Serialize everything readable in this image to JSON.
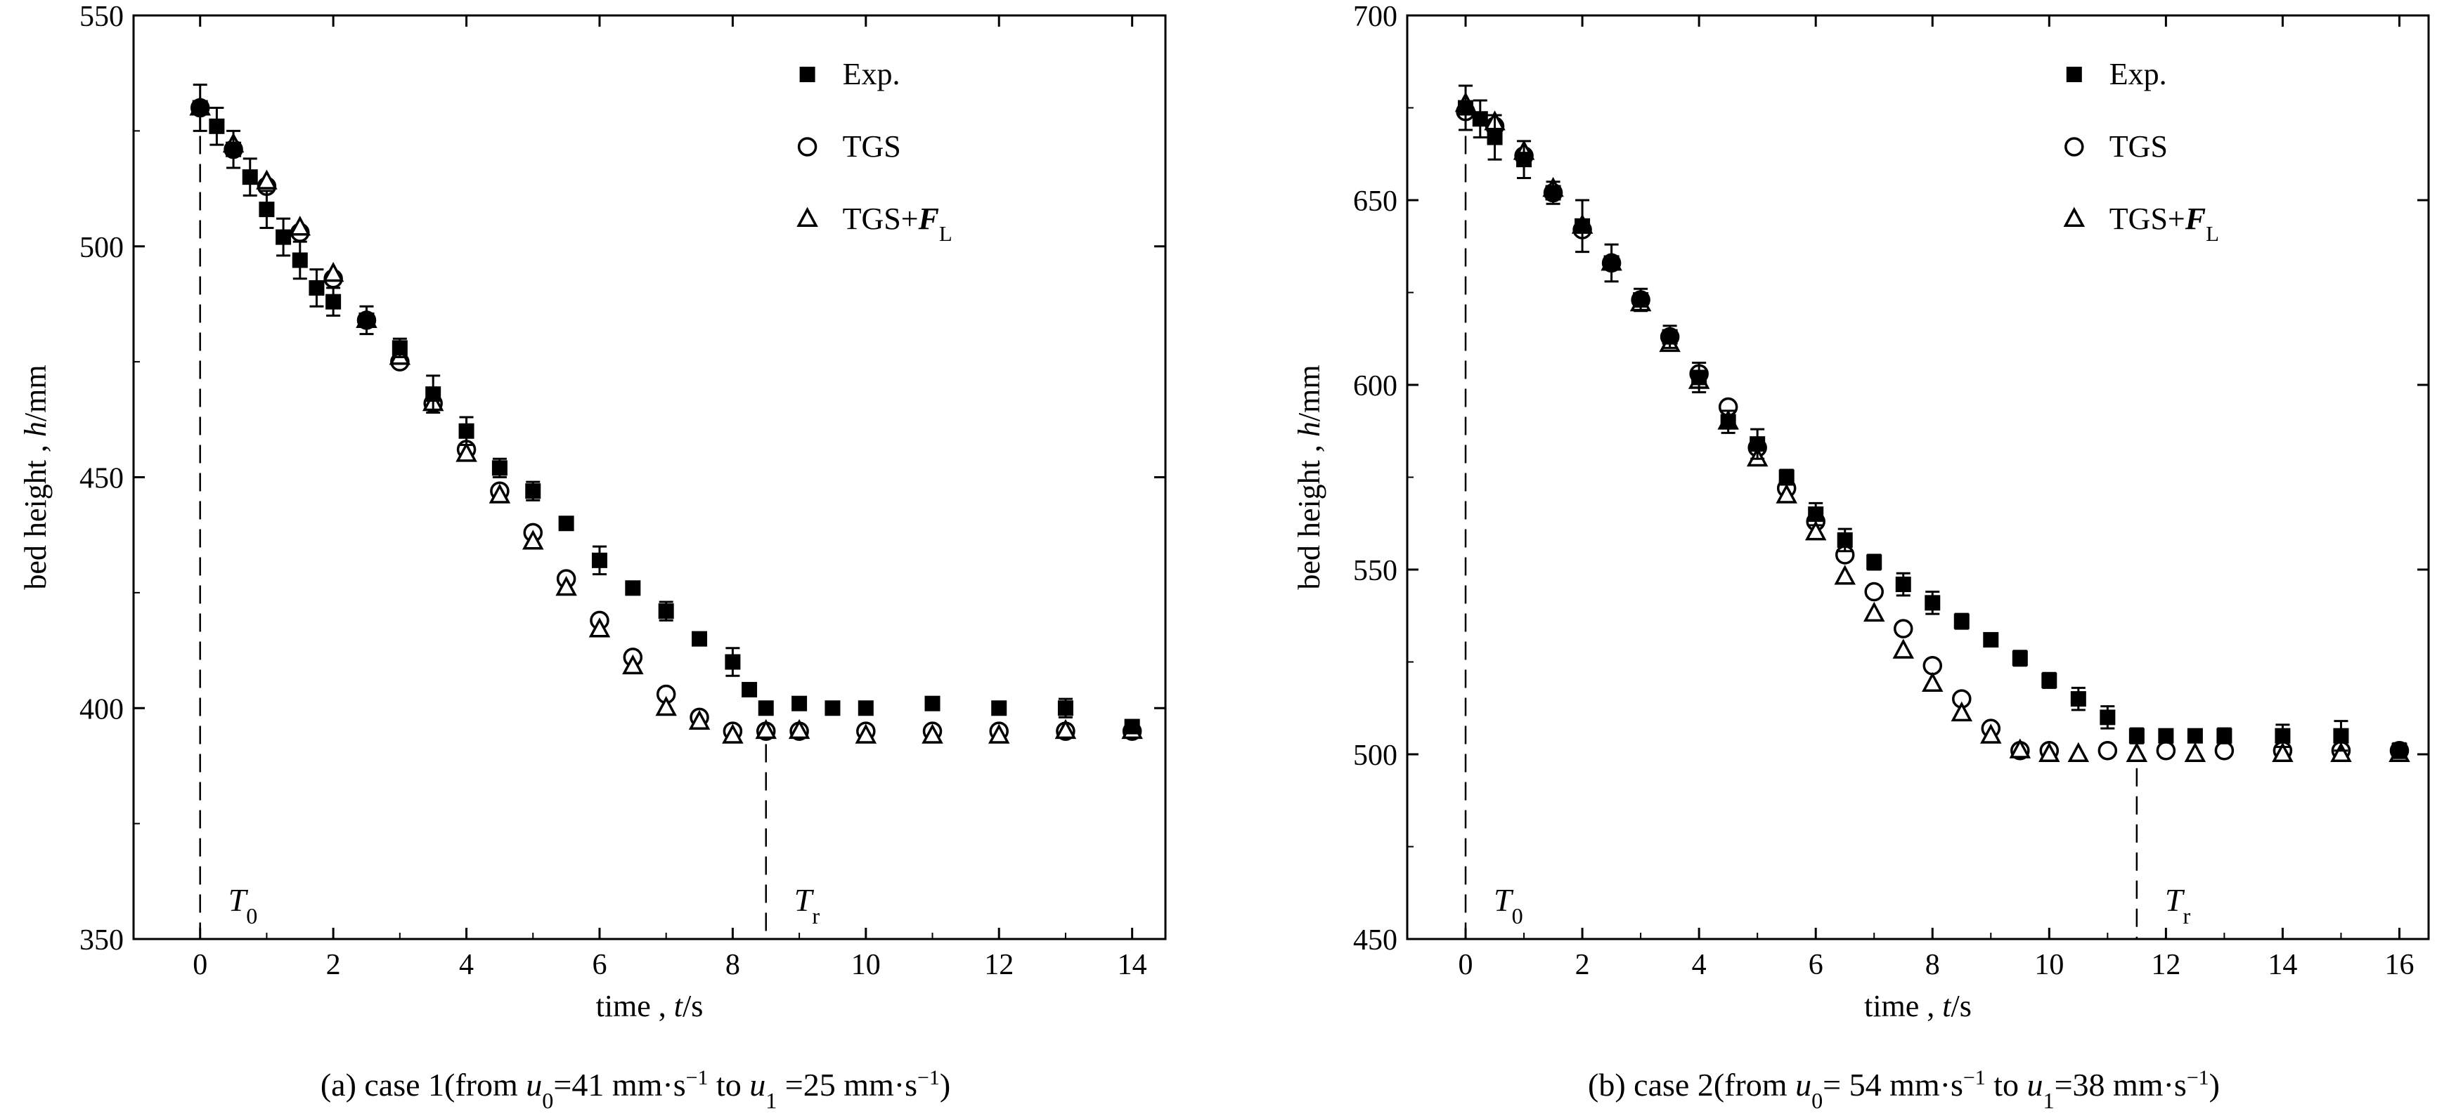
{
  "chart_data": [
    {
      "type": "scatter",
      "panel": "a",
      "caption": "(a) case 1(from u0=41  mm·s⁻¹ to u1 =25 mm·s⁻¹)",
      "xlabel": "time , t/s",
      "ylabel": "bed height , h/mm",
      "xlim": [
        -1,
        14.5
      ],
      "ylim": [
        350,
        550
      ],
      "xticks": [
        0,
        2,
        4,
        6,
        8,
        10,
        12,
        14
      ],
      "yticks": [
        350,
        400,
        450,
        500,
        550
      ],
      "grid": false,
      "legend": {
        "placement": "top-right",
        "entries": [
          "Exp.",
          "TGS",
          "TGS+FL"
        ]
      },
      "markers": [
        {
          "label": "T0",
          "x": 0
        },
        {
          "label": "Tr",
          "x": 8.5
        }
      ],
      "series": [
        {
          "name": "Exp.",
          "symbol": "square",
          "x": [
            0,
            0.25,
            0.5,
            0.75,
            1.0,
            1.25,
            1.5,
            1.75,
            2.0,
            2.5,
            3.0,
            3.5,
            4.0,
            4.5,
            5.0,
            5.5,
            6.0,
            6.5,
            7.0,
            7.5,
            8.0,
            8.25,
            8.5,
            9.0,
            9.5,
            10.0,
            11.0,
            12.0,
            13.0,
            14.0
          ],
          "y": [
            530,
            526,
            521,
            515,
            508,
            502,
            497,
            491,
            488,
            484,
            478,
            468,
            460,
            452,
            447,
            440,
            432,
            426,
            421,
            415,
            410,
            404,
            400,
            401,
            400,
            400,
            401,
            400,
            400,
            396
          ],
          "err": [
            5,
            4,
            4,
            4,
            4,
            4,
            4,
            4,
            3,
            3,
            2,
            4,
            3,
            2,
            2,
            1,
            3,
            1,
            2,
            1,
            3,
            1,
            1,
            1,
            1,
            1,
            1,
            1,
            2,
            1
          ]
        },
        {
          "name": "TGS",
          "symbol": "circle",
          "x": [
            0,
            0.5,
            1.0,
            1.5,
            2.0,
            2.5,
            3.0,
            3.5,
            4.0,
            4.5,
            5.0,
            5.5,
            6.0,
            6.5,
            7.0,
            7.5,
            8.0,
            8.5,
            9.0,
            10.0,
            11.0,
            12.0,
            13.0,
            14.0
          ],
          "y": [
            530,
            521,
            513,
            503,
            493,
            484,
            475,
            466,
            456,
            447,
            438,
            428,
            419,
            411,
            403,
            398,
            395,
            395,
            395,
            395,
            395,
            395,
            395,
            395
          ]
        },
        {
          "name": "TGS+FL",
          "symbol": "triangle",
          "x": [
            0,
            0.5,
            1.0,
            1.5,
            2.0,
            2.5,
            3.0,
            3.5,
            4.0,
            4.5,
            5.0,
            5.5,
            6.0,
            6.5,
            7.0,
            7.5,
            8.0,
            8.5,
            9.0,
            10.0,
            11.0,
            12.0,
            13.0,
            14.0
          ],
          "y": [
            530,
            522,
            514,
            504,
            494,
            484,
            476,
            466,
            455,
            446,
            436,
            426,
            417,
            409,
            400,
            397,
            394,
            395,
            395,
            394,
            394,
            394,
            395,
            395
          ]
        }
      ]
    },
    {
      "type": "scatter",
      "panel": "b",
      "caption": "(b) case 2(from u0= 54 mm·s⁻¹ to u1=38 mm·s⁻¹)",
      "xlabel": "time , t/s",
      "ylabel": "bed height , h/mm",
      "xlim": [
        -1,
        16.5
      ],
      "ylim": [
        450,
        700
      ],
      "xticks": [
        0,
        2,
        4,
        6,
        8,
        10,
        12,
        14,
        16
      ],
      "yticks": [
        450,
        500,
        550,
        600,
        650,
        700
      ],
      "grid": false,
      "legend": {
        "placement": "top-right",
        "entries": [
          "Exp.",
          "TGS",
          "TGS+FL"
        ]
      },
      "markers": [
        {
          "label": "T0",
          "x": 0
        },
        {
          "label": "Tr",
          "x": 11.5
        }
      ],
      "series": [
        {
          "name": "Exp.",
          "symbol": "square",
          "x": [
            0,
            0.25,
            0.5,
            1.0,
            1.5,
            2.0,
            2.5,
            3.0,
            3.5,
            4.0,
            4.5,
            5.0,
            5.5,
            6.0,
            6.5,
            7.0,
            7.5,
            8.0,
            8.5,
            9.0,
            9.5,
            10.0,
            10.5,
            11.0,
            11.5,
            12.0,
            12.5,
            13.0,
            14.0,
            15.0,
            16.0
          ],
          "y": [
            675,
            672,
            667,
            661,
            652,
            643,
            633,
            623,
            613,
            602,
            590,
            584,
            575,
            565,
            558,
            552,
            546,
            541,
            536,
            531,
            526,
            520,
            515,
            510,
            505,
            505,
            505,
            505,
            505,
            505,
            501
          ],
          "err": [
            6,
            5,
            6,
            5,
            3,
            7,
            5,
            3,
            3,
            4,
            3,
            4,
            2,
            3,
            3,
            2,
            3,
            3,
            2,
            1,
            2,
            2,
            3,
            3,
            2,
            1,
            1,
            2,
            3,
            4,
            2
          ]
        },
        {
          "name": "TGS",
          "symbol": "circle",
          "x": [
            0,
            0.5,
            1.0,
            1.5,
            2.0,
            2.5,
            3.0,
            3.5,
            4.0,
            4.5,
            5.0,
            5.5,
            6.0,
            6.5,
            7.0,
            7.5,
            8.0,
            8.5,
            9.0,
            9.5,
            10.0,
            11.0,
            12.0,
            13.0,
            14.0,
            15.0,
            16.0
          ],
          "y": [
            674,
            670,
            662,
            652,
            642,
            633,
            623,
            613,
            603,
            594,
            583,
            572,
            563,
            554,
            544,
            534,
            524,
            515,
            507,
            501,
            501,
            501,
            501,
            501,
            501,
            501,
            501
          ]
        },
        {
          "name": "TGS+FL",
          "symbol": "triangle",
          "x": [
            0,
            0.5,
            1.0,
            1.5,
            2.0,
            2.5,
            3.0,
            3.5,
            4.0,
            4.5,
            5.0,
            5.5,
            6.0,
            6.5,
            7.0,
            7.5,
            8.0,
            8.5,
            9.0,
            9.5,
            10.0,
            10.5,
            11.5,
            12.5,
            14.0,
            15.0,
            16.0
          ],
          "y": [
            676,
            671,
            663,
            653,
            643,
            633,
            622,
            611,
            601,
            590,
            580,
            570,
            560,
            548,
            538,
            528,
            519,
            511,
            505,
            501,
            500,
            500,
            500,
            500,
            500,
            500,
            500
          ]
        }
      ]
    }
  ]
}
